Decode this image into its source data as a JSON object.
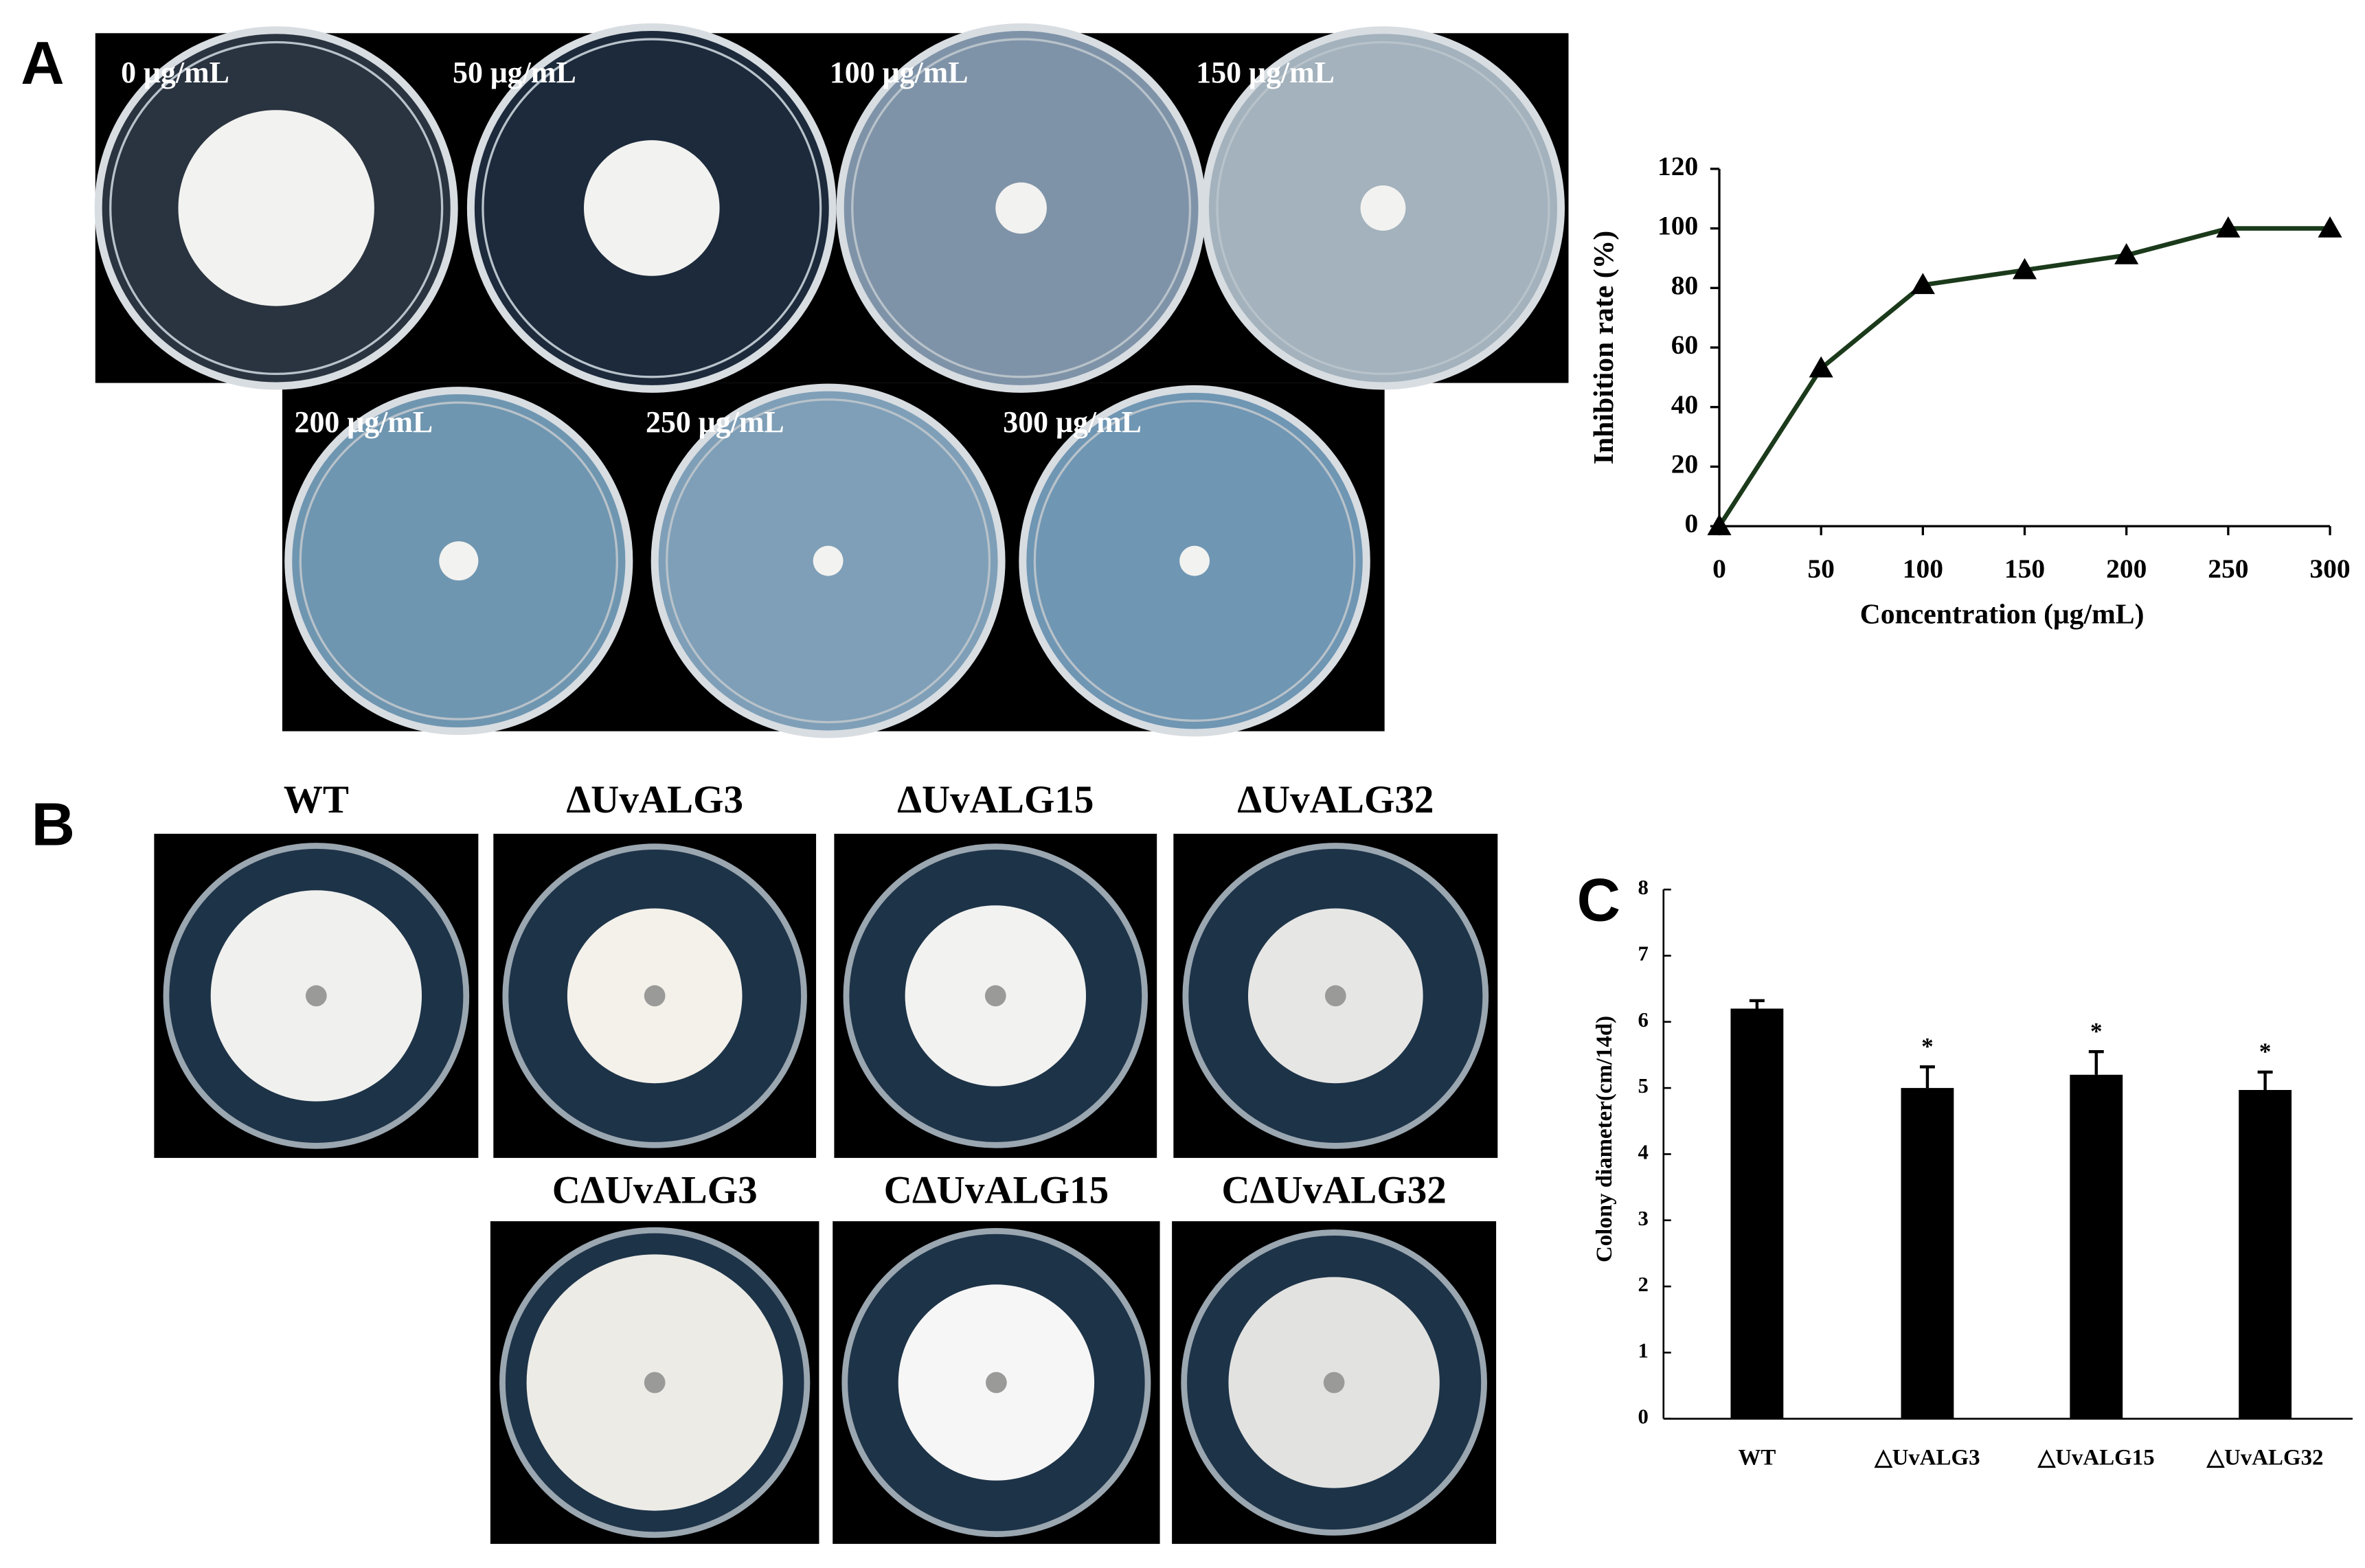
{
  "panel_labels": [
    "A",
    "B",
    "C"
  ],
  "panel_a": {
    "plates": [
      "0 μg/mL",
      "50 μg/mL",
      "100 μg/mL",
      "150 μg/mL",
      "200 μg/mL",
      "250 μg/mL",
      "300 μg/mL"
    ]
  },
  "panel_b": {
    "plates_top": [
      "WT",
      "ΔUvALG3",
      "ΔUvALG15",
      "ΔUvALG32"
    ],
    "plates_bottom": [
      "CΔUvALG3",
      "CΔUvALG15",
      "CΔUvALG32"
    ]
  },
  "chart_data": [
    {
      "type": "line",
      "x_label": "Concentration (μg/mL)",
      "y_label": "Inhibition rate (%)",
      "x": [
        0,
        50,
        100,
        150,
        200,
        250,
        300
      ],
      "values": [
        0,
        53,
        81,
        86,
        91,
        100,
        100
      ],
      "color": "#1b3a1b",
      "marker": "triangle",
      "xlim": [
        0,
        300
      ],
      "xticks": [
        0,
        50,
        100,
        150,
        200,
        250,
        300
      ],
      "ylim": [
        0,
        120
      ],
      "yticks": [
        0,
        20,
        40,
        60,
        80,
        100,
        120
      ]
    },
    {
      "type": "bar",
      "y_label": "Colony diameter(cm/14d)",
      "categories": [
        "WT",
        "△UvALG3",
        "△UvALG15",
        "△UvALG32"
      ],
      "values": [
        6.2,
        5.0,
        5.2,
        4.97
      ],
      "errors": [
        0.12,
        0.32,
        0.35,
        0.27
      ],
      "significance": [
        null,
        "*",
        "*",
        "*"
      ],
      "color": "#000000",
      "ylim": [
        0,
        8
      ],
      "yticks": [
        0,
        1,
        2,
        3,
        4,
        5,
        6,
        7,
        8
      ]
    }
  ]
}
